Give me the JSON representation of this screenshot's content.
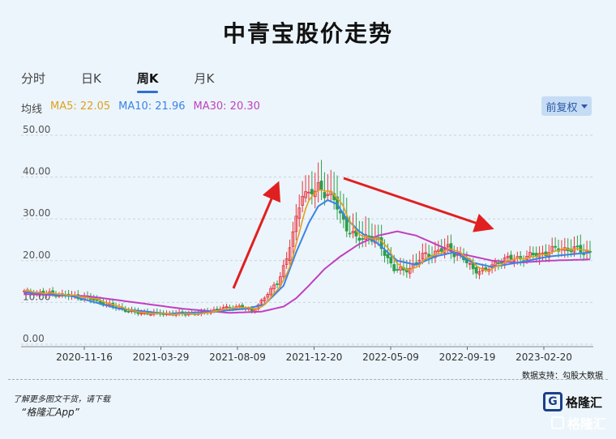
{
  "header": {
    "title": "中青宝股价走势"
  },
  "tabs": [
    {
      "label": "分时",
      "active": false
    },
    {
      "label": "日K",
      "active": false
    },
    {
      "label": "周K",
      "active": true
    },
    {
      "label": "月K",
      "active": false
    }
  ],
  "legend": {
    "label": "均线",
    "ma5": {
      "label": "MA5: 22.05",
      "color": "#e0a020"
    },
    "ma10": {
      "label": "MA10: 21.96",
      "color": "#3b82e8"
    },
    "ma30": {
      "label": "MA30: 20.30",
      "color": "#c040c0"
    }
  },
  "adjust_button": {
    "label": "前复权",
    "icon": "caret-down-icon"
  },
  "footer": {
    "source": "数据支持：勾股大数据",
    "download_line1": "了解更多图文干货，请下载",
    "download_line2": "“格隆汇App”",
    "logo_text": "格隆汇",
    "watermark_text": "格隆汇"
  },
  "chart_data": {
    "type": "candlestick",
    "ylim": [
      0,
      50
    ],
    "yticks": [
      "0.00",
      "10.00",
      "20.00",
      "30.00",
      "40.00",
      "50.00"
    ],
    "xticks": [
      "2020-11-16",
      "2021-03-29",
      "2021-08-09",
      "2021-12-20",
      "2022-05-09",
      "2022-09-19",
      "2023-02-20"
    ],
    "colors": {
      "up": "#e8343c",
      "down": "#2e9e4a"
    },
    "close_keypoints": [
      [
        0,
        12.5
      ],
      [
        10,
        12.0
      ],
      [
        20,
        11.0
      ],
      [
        28,
        9.0
      ],
      [
        35,
        7.5
      ],
      [
        45,
        7.2
      ],
      [
        55,
        7.3
      ],
      [
        62,
        8.5
      ],
      [
        68,
        9.0
      ],
      [
        72,
        8.0
      ],
      [
        76,
        11.0
      ],
      [
        80,
        15.0
      ],
      [
        83,
        20.0
      ],
      [
        86,
        30.0
      ],
      [
        88,
        37.0
      ],
      [
        90,
        35.0
      ],
      [
        93,
        38.0
      ],
      [
        96,
        36.0
      ],
      [
        99,
        33.0
      ],
      [
        102,
        28.0
      ],
      [
        105,
        25.0
      ],
      [
        108,
        26.0
      ],
      [
        111,
        25.0
      ],
      [
        114,
        22.0
      ],
      [
        117,
        18.0
      ],
      [
        120,
        17.5
      ],
      [
        123,
        19.0
      ],
      [
        126,
        21.0
      ],
      [
        130,
        22.0
      ],
      [
        134,
        23.0
      ],
      [
        138,
        21.0
      ],
      [
        142,
        18.0
      ],
      [
        146,
        17.5
      ],
      [
        150,
        20.0
      ],
      [
        155,
        20.5
      ],
      [
        160,
        21.0
      ],
      [
        165,
        22.0
      ],
      [
        170,
        23.0
      ],
      [
        175,
        22.5
      ],
      [
        179,
        22.05
      ]
    ],
    "ma10_keypoints": [
      [
        0,
        12.5
      ],
      [
        15,
        11.5
      ],
      [
        30,
        8.5
      ],
      [
        45,
        7.3
      ],
      [
        60,
        7.8
      ],
      [
        70,
        8.5
      ],
      [
        76,
        9.5
      ],
      [
        82,
        14.0
      ],
      [
        86,
        22.0
      ],
      [
        90,
        29.0
      ],
      [
        93,
        33.0
      ],
      [
        96,
        34.5
      ],
      [
        99,
        33.5
      ],
      [
        102,
        30.0
      ],
      [
        106,
        27.0
      ],
      [
        112,
        24.0
      ],
      [
        118,
        20.0
      ],
      [
        124,
        19.0
      ],
      [
        130,
        21.0
      ],
      [
        136,
        22.0
      ],
      [
        142,
        19.5
      ],
      [
        148,
        18.5
      ],
      [
        156,
        19.5
      ],
      [
        166,
        21.0
      ],
      [
        179,
        21.96
      ]
    ],
    "ma30_keypoints": [
      [
        0,
        12.0
      ],
      [
        20,
        11.5
      ],
      [
        35,
        10.0
      ],
      [
        50,
        8.5
      ],
      [
        65,
        7.5
      ],
      [
        75,
        7.8
      ],
      [
        82,
        9.0
      ],
      [
        86,
        11.0
      ],
      [
        90,
        14.0
      ],
      [
        95,
        18.0
      ],
      [
        100,
        21.0
      ],
      [
        106,
        24.0
      ],
      [
        112,
        26.0
      ],
      [
        118,
        27.0
      ],
      [
        124,
        26.0
      ],
      [
        130,
        24.0
      ],
      [
        136,
        22.0
      ],
      [
        142,
        21.0
      ],
      [
        148,
        20.0
      ],
      [
        156,
        19.5
      ],
      [
        166,
        20.0
      ],
      [
        179,
        20.3
      ]
    ],
    "weeks": 180
  }
}
